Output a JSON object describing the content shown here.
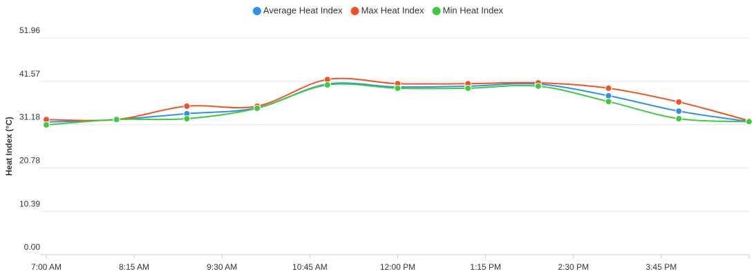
{
  "chart_data": {
    "type": "line",
    "y_label": "Heat Index (°C)",
    "x": [
      420,
      480,
      540,
      600,
      660,
      720,
      780,
      840,
      900,
      960,
      1020
    ],
    "xlim": [
      420,
      1020
    ],
    "xticks": [
      {
        "value": 420,
        "label": "7:00 AM"
      },
      {
        "value": 495,
        "label": "8:15 AM"
      },
      {
        "value": 570,
        "label": "9:30 AM"
      },
      {
        "value": 645,
        "label": "10:45 AM"
      },
      {
        "value": 720,
        "label": "12:00 PM"
      },
      {
        "value": 795,
        "label": "1:15 PM"
      },
      {
        "value": 870,
        "label": "2:30 PM"
      },
      {
        "value": 945,
        "label": "3:45 PM"
      }
    ],
    "ylim": [
      0,
      51.96
    ],
    "yticks": [
      {
        "value": 0,
        "label": "0.00"
      },
      10.39,
      20.78,
      31.18,
      41.57,
      51.96
    ],
    "grid": true,
    "legend": "top",
    "series": [
      {
        "name": "Average Heat Index",
        "color": "#2f8fef",
        "values": [
          31.8,
          32.4,
          33.8,
          35.2,
          40.9,
          40.2,
          40.4,
          40.9,
          38.1,
          34.4,
          31.9
        ]
      },
      {
        "name": "Max Heat Index",
        "color": "#f4511e",
        "values": [
          32.4,
          32.4,
          35.6,
          35.6,
          42.0,
          41.0,
          41.0,
          41.2,
          39.9,
          36.6,
          32.1
        ]
      },
      {
        "name": "Min Heat Index",
        "color": "#3ccb3c",
        "values": [
          31.1,
          32.4,
          32.6,
          35.1,
          40.7,
          39.9,
          39.9,
          40.4,
          36.7,
          32.6,
          31.9
        ]
      }
    ]
  }
}
